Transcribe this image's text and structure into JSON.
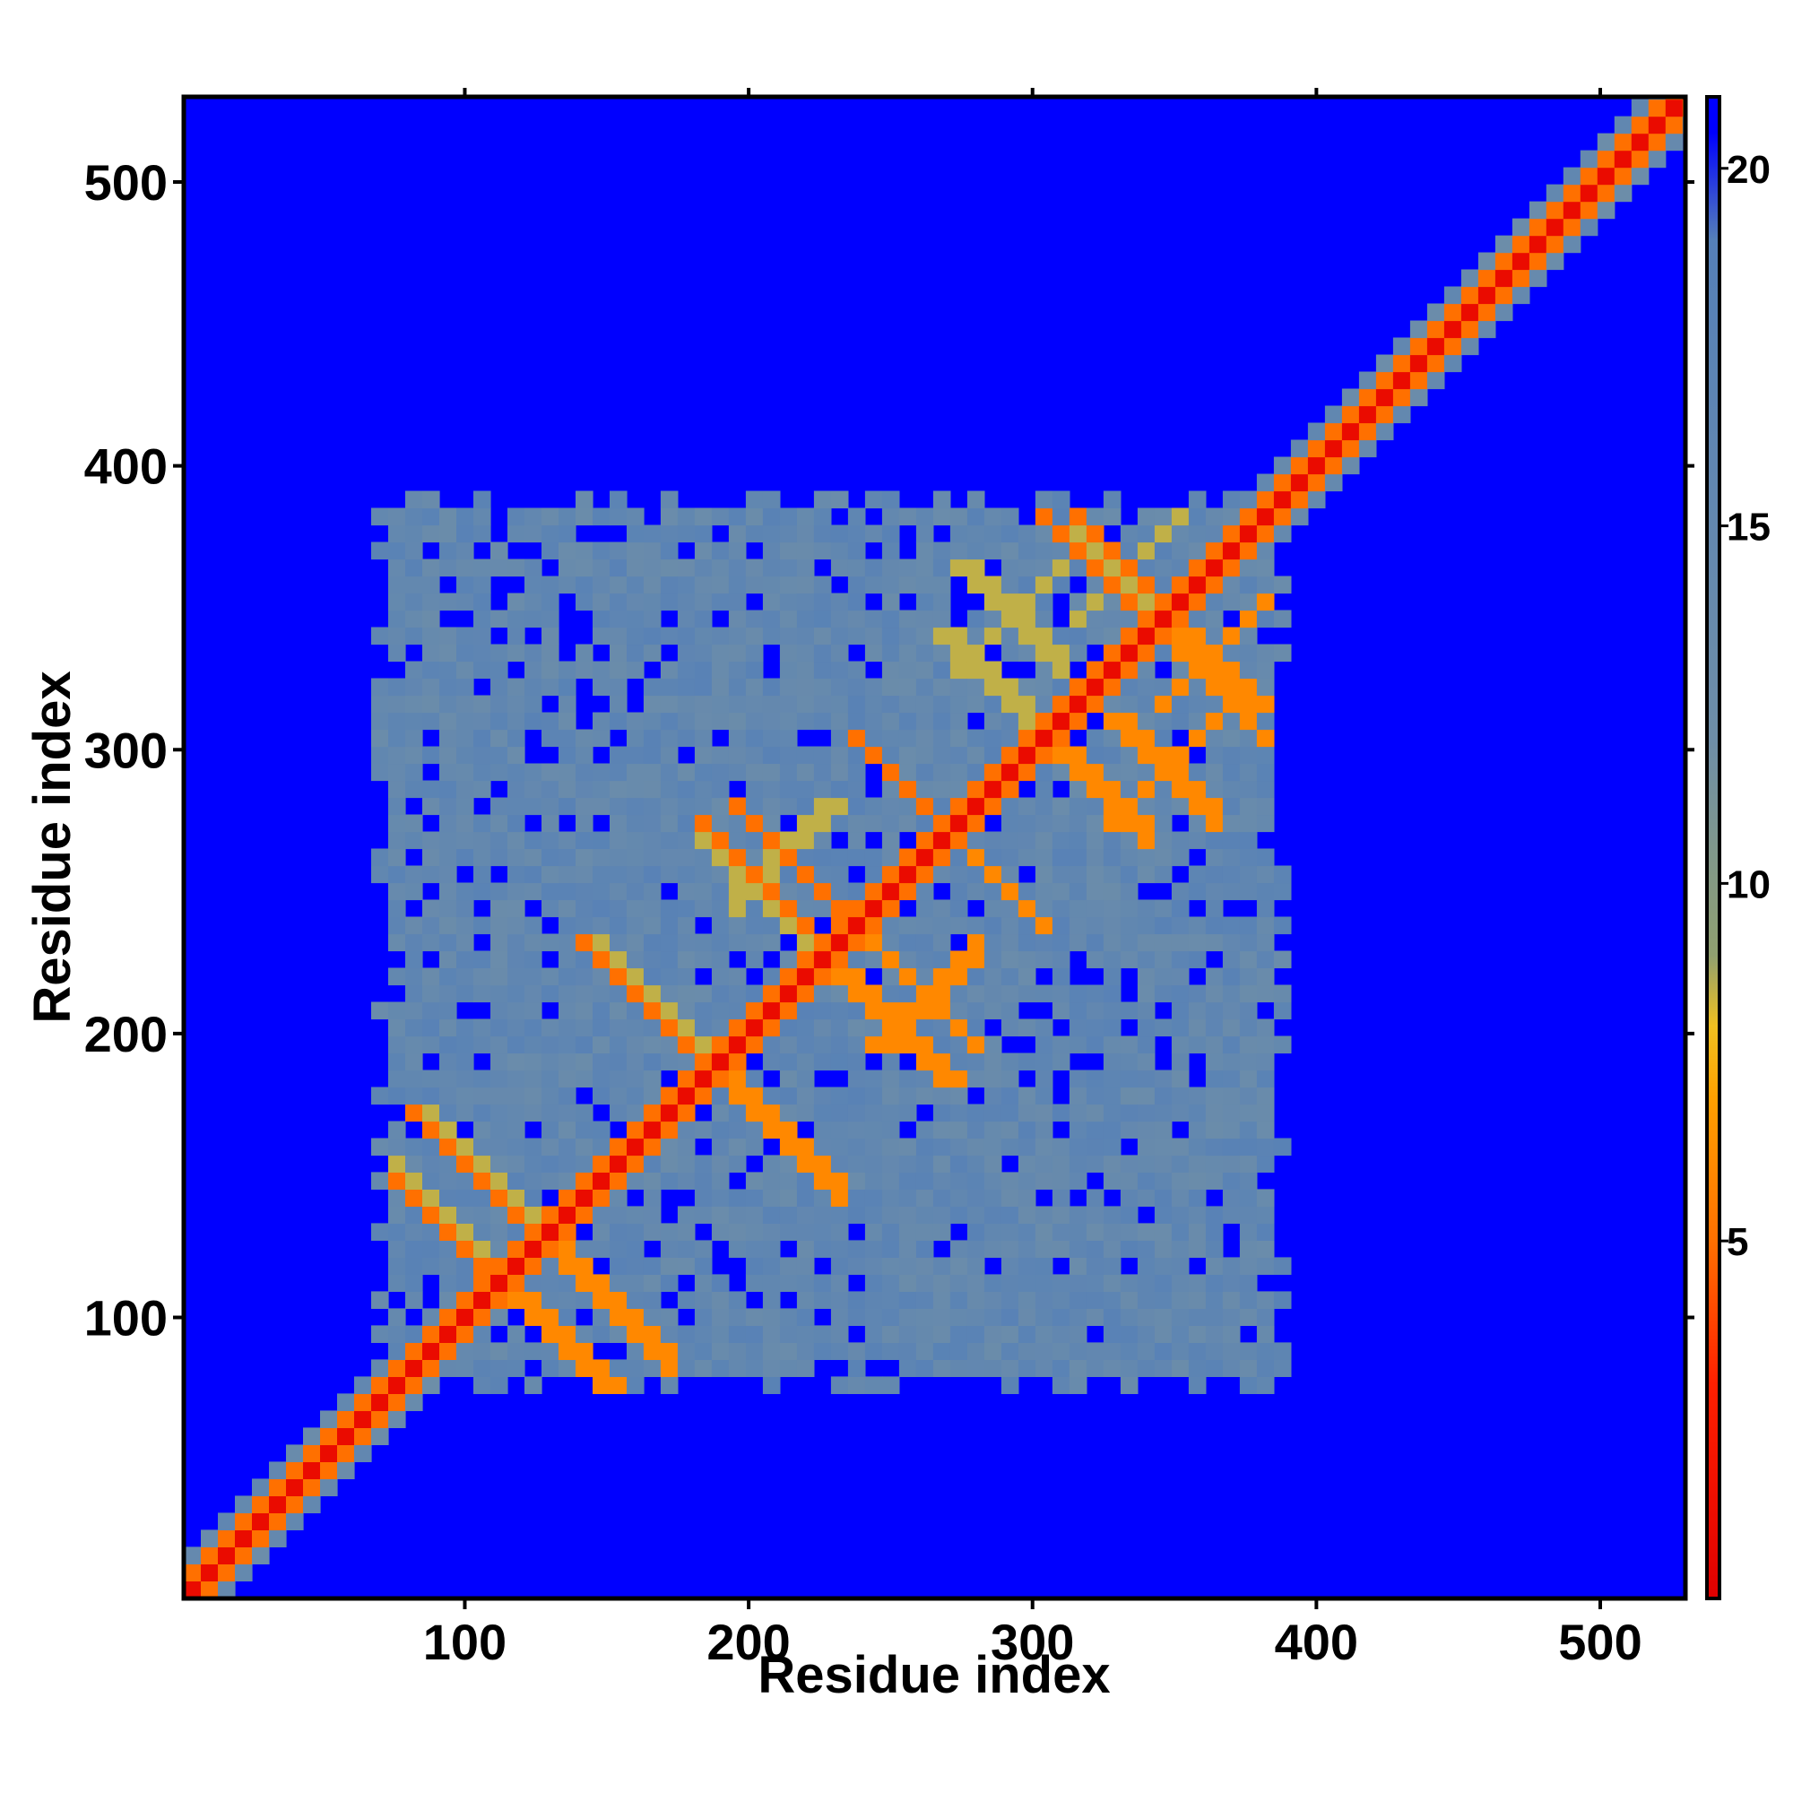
{
  "chart_data": {
    "type": "heatmap",
    "title": "",
    "xlabel": "Residue index",
    "ylabel": "Residue index",
    "xlim": [
      1,
      530
    ],
    "ylim": [
      1,
      530
    ],
    "x_ticks": [
      100,
      200,
      300,
      400,
      500
    ],
    "y_ticks": [
      100,
      200,
      300,
      400,
      500
    ],
    "x_tick_labels": [
      "100",
      "200",
      "300",
      "400",
      "500"
    ],
    "y_tick_labels": [
      "100",
      "200",
      "300",
      "400",
      "500"
    ],
    "colorbar": {
      "range": [
        0,
        21
      ],
      "ticks": [
        5,
        10,
        15,
        20
      ],
      "tick_labels": [
        "5",
        "10",
        "15",
        "20"
      ],
      "stops": [
        {
          "value": 0,
          "color": "#e00000"
        },
        {
          "value": 3,
          "color": "#ff2000"
        },
        {
          "value": 5,
          "color": "#ff7000"
        },
        {
          "value": 7,
          "color": "#ffa000"
        },
        {
          "value": 8,
          "color": "#f0c020"
        },
        {
          "value": 9,
          "color": "#90a070"
        },
        {
          "value": 12,
          "color": "#6e8ea8"
        },
        {
          "value": 19,
          "color": "#5580b8"
        },
        {
          "value": 20.5,
          "color": "#0000ff"
        }
      ]
    },
    "background_value": 21,
    "diagonal": {
      "from": 1,
      "to": 530
    },
    "dense_region": {
      "x_range": [
        75,
        375
      ],
      "y_range": [
        80,
        375
      ]
    },
    "contact_features": [
      {
        "kind": "helix-pair",
        "i": 90,
        "j": 130
      },
      {
        "kind": "helix-pair",
        "i": 100,
        "j": 150
      },
      {
        "kind": "helix-pair",
        "i": 160,
        "j": 210
      },
      {
        "kind": "helix-pair",
        "i": 200,
        "j": 250
      },
      {
        "kind": "helix-pair",
        "i": 250,
        "j": 285
      },
      {
        "kind": "helix-pair",
        "i": 285,
        "j": 320
      },
      {
        "kind": "helix-pair",
        "i": 320,
        "j": 360
      },
      {
        "kind": "cross",
        "i": 210,
        "j": 260
      },
      {
        "kind": "cross",
        "i": 290,
        "j": 345
      },
      {
        "kind": "cross",
        "i": 330,
        "j": 360
      }
    ]
  },
  "colors": {
    "background": "#0000ff",
    "region": "#5a82b4",
    "diagonal": "#e00000"
  }
}
